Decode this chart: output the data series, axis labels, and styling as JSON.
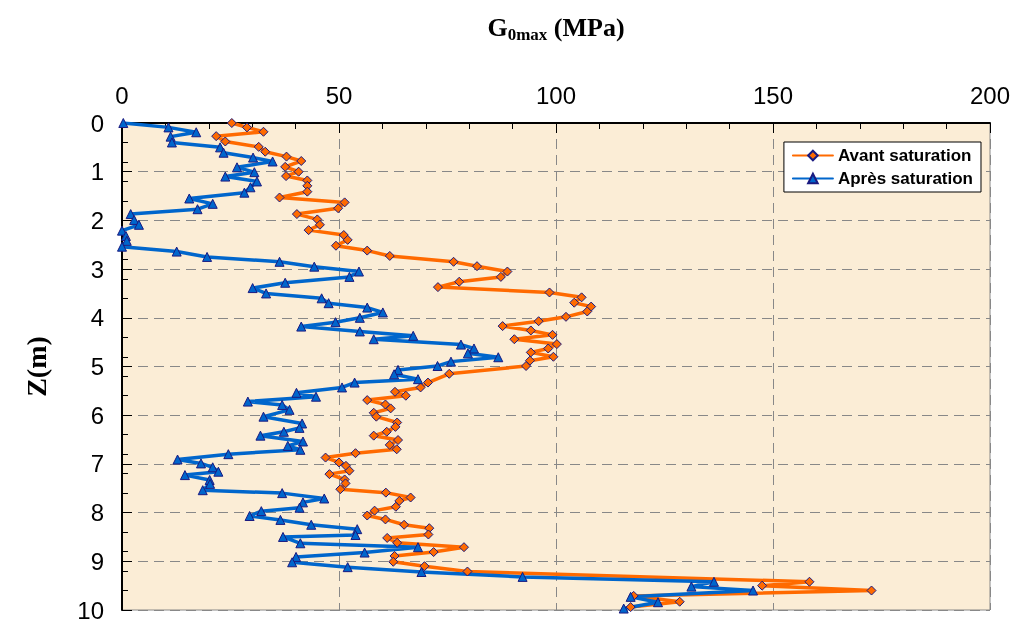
{
  "chart_data": {
    "type": "line",
    "xlabel": "G$_{0max}$ (MPa)",
    "ylabel": "Z(m)",
    "xlim": [
      0,
      200
    ],
    "xticks": [
      0,
      50,
      100,
      150,
      200
    ],
    "ylim": [
      10,
      0
    ],
    "yticks": [
      0,
      1,
      2,
      3,
      4,
      5,
      6,
      7,
      8,
      9,
      10
    ],
    "grid": true,
    "legend": "top right",
    "line_style": "solid",
    "series": [
      {
        "name": "Avant saturation",
        "color": "#ff6a00",
        "marker": "diamond",
        "x": [
          25.3,
          28.8,
          32.6,
          21.7,
          23.8,
          31.5,
          33.0,
          37.9,
          41.3,
          37.6,
          40.7,
          37.8,
          42.7,
          42.7,
          42.7,
          36.3,
          51.3,
          49.8,
          40.3,
          45.0,
          45.6,
          43.0,
          51.1,
          52.0,
          49.3,
          56.5,
          61.7,
          76.4,
          81.8,
          88.8,
          87.3,
          77.7,
          72.8,
          98.5,
          105.9,
          104.2,
          108.1,
          107.2,
          102.3,
          96.0,
          87.7,
          94.2,
          99.2,
          90.4,
          100.2,
          98.2,
          94.2,
          99.4,
          94.0,
          93.1,
          75.4,
          70.5,
          68.8,
          62.9,
          65.4,
          56.5,
          60.7,
          61.9,
          58.0,
          58.6,
          63.4,
          63.0,
          61.0,
          58.0,
          63.6,
          61.7,
          63.3,
          53.8,
          46.9,
          50.0,
          51.6,
          52.4,
          47.8,
          51.3,
          51.5,
          50.3,
          60.8,
          66.5,
          63.9,
          63.1,
          58.2,
          56.5,
          60.7,
          65.0,
          70.8,
          70.6,
          61.1,
          63.4,
          78.8,
          71.8,
          62.8,
          62.5,
          69.7,
          79.6,
          158.4,
          147.5,
          172.7,
          117.9,
          128.5,
          117.2
        ],
        "values": [
          0.0,
          0.09,
          0.18,
          0.27,
          0.38,
          0.49,
          0.59,
          0.69,
          0.78,
          0.9,
          1.0,
          1.09,
          1.18,
          1.29,
          1.41,
          1.53,
          1.63,
          1.75,
          1.87,
          1.98,
          2.09,
          2.2,
          2.3,
          2.4,
          2.52,
          2.62,
          2.73,
          2.85,
          2.94,
          3.05,
          3.16,
          3.26,
          3.37,
          3.48,
          3.58,
          3.69,
          3.77,
          3.87,
          3.98,
          4.07,
          4.17,
          4.26,
          4.35,
          4.44,
          4.54,
          4.63,
          4.71,
          4.8,
          4.88,
          4.99,
          5.15,
          5.33,
          5.43,
          5.52,
          5.6,
          5.69,
          5.78,
          5.86,
          5.95,
          6.03,
          6.15,
          6.24,
          6.34,
          6.42,
          6.51,
          6.61,
          6.7,
          6.78,
          6.87,
          6.97,
          7.04,
          7.14,
          7.21,
          7.32,
          7.4,
          7.52,
          7.59,
          7.69,
          7.76,
          7.88,
          7.96,
          8.06,
          8.14,
          8.25,
          8.32,
          8.45,
          8.52,
          8.62,
          8.71,
          8.81,
          8.89,
          9.01,
          9.1,
          9.21,
          9.42,
          9.5,
          9.6,
          9.71,
          9.83,
          9.94
        ]
      },
      {
        "name": "Après saturation",
        "color": "#0066cc",
        "marker": "triangle",
        "x": [
          0.3,
          10.7,
          17.1,
          11.2,
          11.5,
          22.6,
          23.4,
          30.2,
          34.7,
          26.5,
          30.5,
          23.8,
          31.1,
          29.6,
          28.2,
          15.5,
          20.9,
          17.4,
          2.0,
          2.8,
          3.9,
          0.0,
          0.9,
          1.1,
          0.0,
          12.6,
          19.6,
          36.3,
          44.3,
          54.6,
          52.4,
          37.6,
          30.1,
          33.2,
          46.0,
          47.6,
          56.5,
          60.1,
          54.8,
          49.2,
          41.3,
          54.8,
          67.1,
          58.0,
          78.1,
          81.1,
          79.7,
          86.7,
          75.8,
          72.7,
          63.6,
          62.7,
          68.2,
          53.6,
          50.7,
          40.2,
          44.7,
          29.0,
          36.9,
          38.6,
          32.6,
          41.5,
          40.9,
          37.3,
          31.9,
          41.7,
          38.2,
          41.1,
          24.5,
          12.8,
          18.2,
          20.9,
          22.2,
          14.5,
          20.2,
          20.3,
          18.6,
          36.9,
          46.6,
          41.7,
          40.9,
          32.1,
          29.4,
          36.5,
          43.6,
          54.2,
          53.8,
          37.1,
          41.1,
          68.2,
          55.9,
          40.1,
          39.2,
          52.0,
          69.0,
          92.3,
          136.4,
          131.2,
          145.4,
          117.2,
          123.5,
          115.6
        ],
        "values": [
          0.0,
          0.09,
          0.19,
          0.28,
          0.4,
          0.5,
          0.61,
          0.71,
          0.79,
          0.91,
          1.01,
          1.1,
          1.2,
          1.32,
          1.43,
          1.55,
          1.66,
          1.77,
          1.87,
          1.99,
          2.09,
          2.21,
          2.32,
          2.42,
          2.54,
          2.64,
          2.75,
          2.85,
          2.95,
          3.05,
          3.16,
          3.28,
          3.39,
          3.5,
          3.6,
          3.7,
          3.79,
          3.89,
          4.0,
          4.09,
          4.18,
          4.28,
          4.37,
          4.44,
          4.55,
          4.63,
          4.73,
          4.81,
          4.9,
          4.99,
          5.07,
          5.16,
          5.26,
          5.33,
          5.43,
          5.54,
          5.62,
          5.72,
          5.79,
          5.89,
          6.03,
          6.17,
          6.26,
          6.34,
          6.42,
          6.54,
          6.63,
          6.71,
          6.8,
          6.91,
          6.99,
          7.07,
          7.16,
          7.23,
          7.33,
          7.41,
          7.54,
          7.6,
          7.71,
          7.79,
          7.9,
          7.97,
          8.07,
          8.15,
          8.25,
          8.34,
          8.46,
          8.5,
          8.63,
          8.71,
          8.82,
          8.91,
          9.02,
          9.12,
          9.22,
          9.32,
          9.42,
          9.52,
          9.6,
          9.73,
          9.84,
          9.97
        ]
      }
    ]
  }
}
